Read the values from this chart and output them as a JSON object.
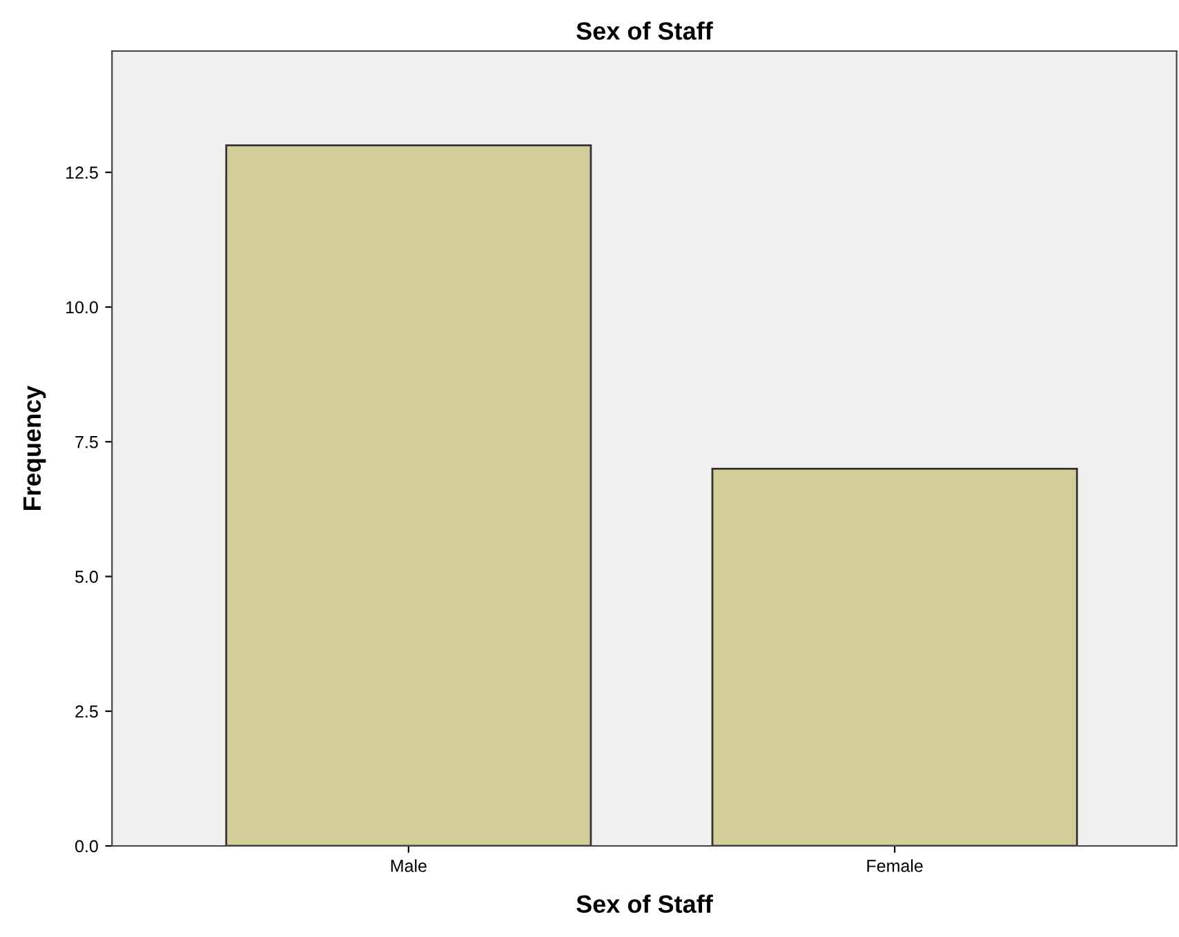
{
  "chart_data": {
    "type": "bar",
    "title": "Sex of Staff",
    "xlabel": "Sex of Staff",
    "ylabel": "Frequency",
    "categories": [
      "Male",
      "Female"
    ],
    "values": [
      13,
      7
    ],
    "color": "#d3ce99",
    "ylim": [
      0,
      14.75
    ],
    "yticks": [
      {
        "value": 0,
        "label": "0.0"
      },
      {
        "value": 2.5,
        "label": "2.5"
      },
      {
        "value": 5,
        "label": "5.0"
      },
      {
        "value": 7.5,
        "label": "7.5"
      },
      {
        "value": 10,
        "label": "10.0"
      },
      {
        "value": 12.5,
        "label": "12.5"
      }
    ],
    "grid": false,
    "legend": false
  }
}
